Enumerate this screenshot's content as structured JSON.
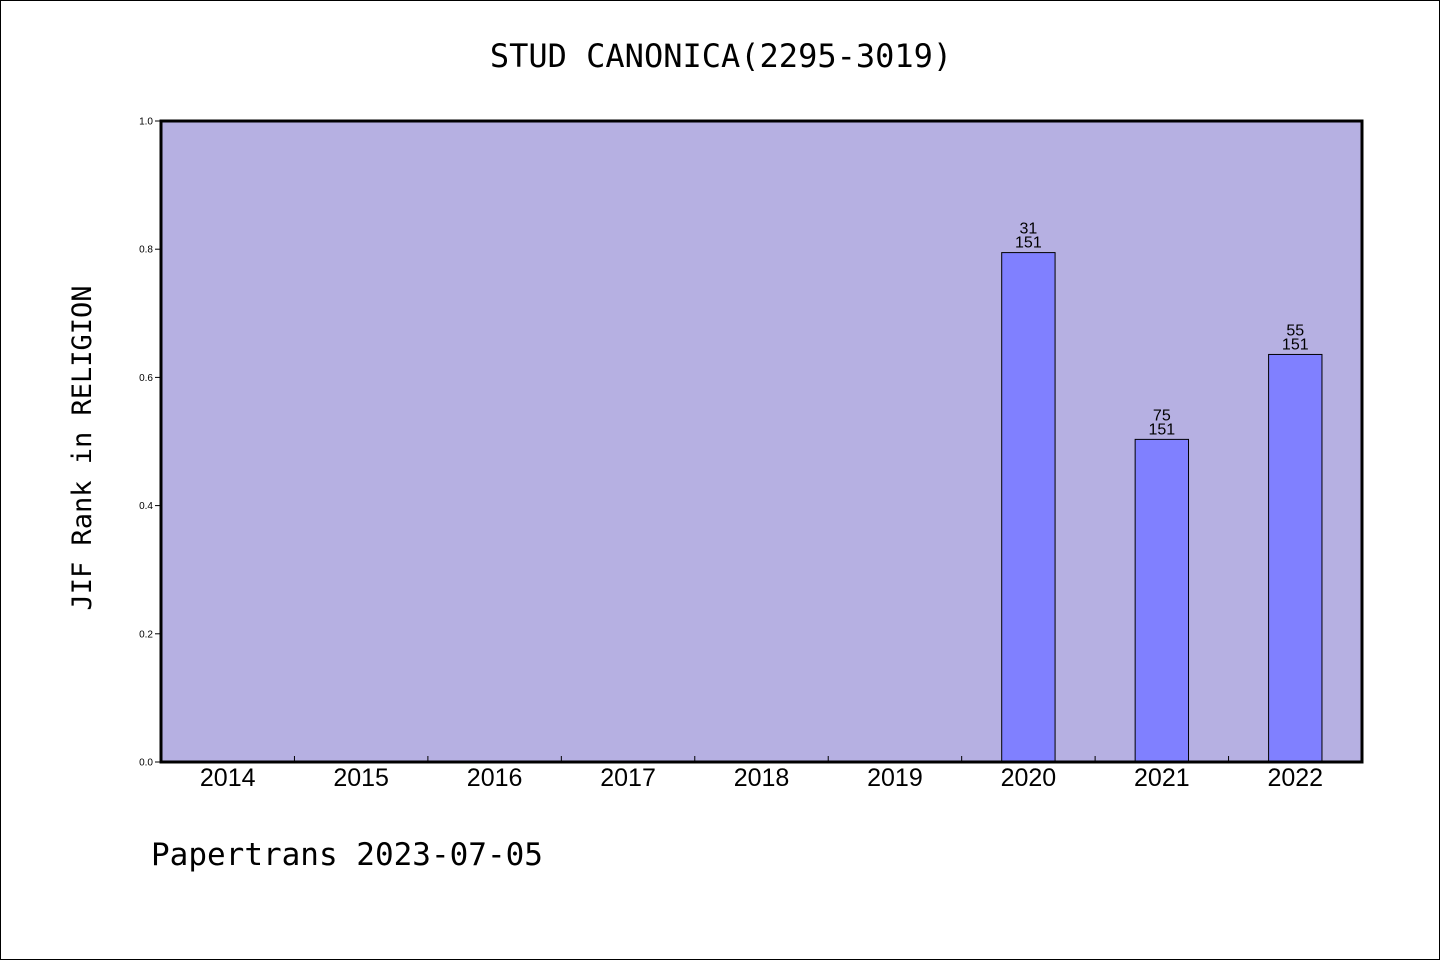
{
  "chart_data": {
    "type": "bar",
    "title": "STUD CANONICA(2295-3019)",
    "ylabel": "JIF Rank in RELIGION",
    "xlabel": "",
    "categories": [
      "2014",
      "2015",
      "2016",
      "2017",
      "2018",
      "2019",
      "2020",
      "2021",
      "2022"
    ],
    "values": [
      null,
      null,
      null,
      null,
      null,
      null,
      0.7947,
      0.5033,
      0.6358
    ],
    "bar_labels": [
      null,
      null,
      null,
      null,
      null,
      null,
      {
        "rank": "31",
        "total": "151"
      },
      {
        "rank": "75",
        "total": "151"
      },
      {
        "rank": "55",
        "total": "151"
      }
    ],
    "ylim": [
      0,
      1.0
    ],
    "yticks": [
      "0.0",
      "0.2",
      "0.4",
      "0.6",
      "0.8",
      "1.0"
    ],
    "grid": false,
    "colors": {
      "plot_background": "#b6b0e2",
      "bar_fill": "#8080ff",
      "axis": "#000000"
    }
  },
  "footer": {
    "credit": "Papertrans 2023-07-05"
  }
}
